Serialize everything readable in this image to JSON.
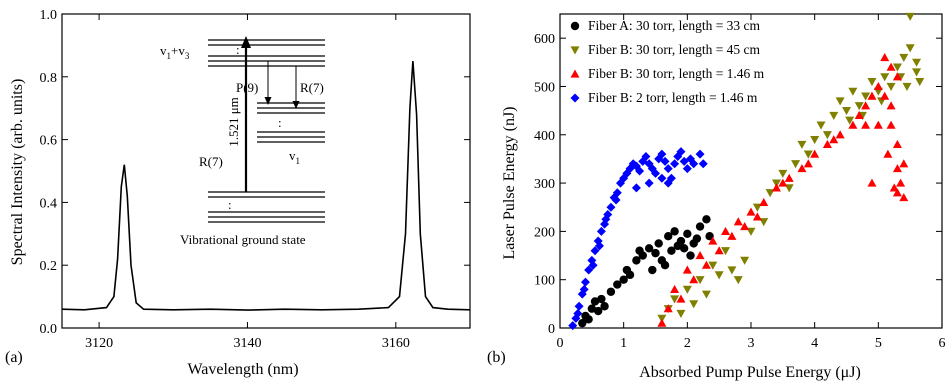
{
  "panels": {
    "a_label": "(a)",
    "b_label": "(b)"
  },
  "chart_data": [
    {
      "type": "line",
      "xlabel": "Wavelength (nm)",
      "ylabel": "Spectral Intensity (arb. units)",
      "xlim": [
        3115,
        3170
      ],
      "ylim": [
        0.0,
        1.0
      ],
      "xticks": [
        3120,
        3140,
        3160
      ],
      "yticks": [
        0.0,
        0.2,
        0.4,
        0.6,
        0.8,
        1.0
      ],
      "grid": false,
      "series": [
        {
          "x": [
            3115,
            3118,
            3121,
            3122,
            3122.5,
            3123,
            3123.4,
            3123.8,
            3124.3,
            3125,
            3126,
            3130,
            3135,
            3140,
            3145,
            3150,
            3155,
            3159,
            3160.5,
            3161.3,
            3161.9,
            3162.3,
            3162.8,
            3163.3,
            3164,
            3165,
            3167,
            3170
          ],
          "y": [
            0.06,
            0.058,
            0.065,
            0.1,
            0.22,
            0.45,
            0.52,
            0.42,
            0.2,
            0.08,
            0.06,
            0.058,
            0.06,
            0.057,
            0.06,
            0.058,
            0.06,
            0.065,
            0.1,
            0.3,
            0.7,
            0.85,
            0.68,
            0.3,
            0.1,
            0.065,
            0.06,
            0.058
          ]
        }
      ],
      "inset": {
        "labels": {
          "upper_state": "v",
          "upper_sub1": "1",
          "plus": "+v",
          "upper_sub3": "3",
          "wavelength": "1.521 μm",
          "pump_branch": "R(7)",
          "emission_p": "P(9)",
          "emission_r": "R(7)",
          "lower_state": "v",
          "lower_sub": "1",
          "ground": "Vibrational ground state"
        }
      }
    },
    {
      "type": "scatter",
      "xlabel": "Absorbed Pump Pulse Energy (μJ)",
      "ylabel": "Laser Pulse Energy (nJ)",
      "xlim": [
        0,
        6
      ],
      "ylim": [
        0,
        650
      ],
      "xticks": [
        0,
        1,
        2,
        3,
        4,
        5,
        6
      ],
      "yticks": [
        0,
        100,
        200,
        300,
        400,
        500,
        600
      ],
      "grid": false,
      "legend_position": "top-left",
      "series": [
        {
          "name": "Fiber A: 30 torr, length = 33 cm",
          "color": "#000000",
          "marker": "circle",
          "points": [
            [
              0.35,
              10
            ],
            [
              0.4,
              25
            ],
            [
              0.45,
              18
            ],
            [
              0.5,
              40
            ],
            [
              0.55,
              55
            ],
            [
              0.6,
              35
            ],
            [
              0.65,
              60
            ],
            [
              0.7,
              45
            ],
            [
              0.8,
              75
            ],
            [
              0.9,
              90
            ],
            [
              1.0,
              100
            ],
            [
              1.05,
              120
            ],
            [
              1.1,
              110
            ],
            [
              1.2,
              140
            ],
            [
              1.3,
              150
            ],
            [
              1.4,
              165
            ],
            [
              1.5,
              155
            ],
            [
              1.55,
              175
            ],
            [
              1.6,
              140
            ],
            [
              1.7,
              190
            ],
            [
              1.75,
              160
            ],
            [
              1.8,
              200
            ],
            [
              1.85,
              170
            ],
            [
              1.9,
              180
            ],
            [
              2.0,
              195
            ],
            [
              2.05,
              150
            ],
            [
              2.1,
              175
            ],
            [
              2.2,
              210
            ],
            [
              2.3,
              225
            ],
            [
              2.35,
              190
            ],
            [
              1.45,
              120
            ],
            [
              1.65,
              130
            ],
            [
              1.95,
              165
            ],
            [
              2.15,
              185
            ],
            [
              1.25,
              160
            ]
          ]
        },
        {
          "name": "Fiber B: 30 torr, length = 45 cm",
          "color": "#808000",
          "marker": "triangle-down",
          "points": [
            [
              1.6,
              20
            ],
            [
              1.7,
              40
            ],
            [
              1.8,
              60
            ],
            [
              1.9,
              30
            ],
            [
              2.0,
              80
            ],
            [
              2.1,
              50
            ],
            [
              2.2,
              100
            ],
            [
              2.3,
              70
            ],
            [
              2.4,
              130
            ],
            [
              2.5,
              110
            ],
            [
              2.6,
              160
            ],
            [
              2.7,
              120
            ],
            [
              2.8,
              100
            ],
            [
              2.9,
              140
            ],
            [
              3.0,
              200
            ],
            [
              3.1,
              250
            ],
            [
              3.2,
              220
            ],
            [
              3.3,
              280
            ],
            [
              3.4,
              300
            ],
            [
              3.5,
              320
            ],
            [
              3.6,
              290
            ],
            [
              3.7,
              340
            ],
            [
              3.8,
              380
            ],
            [
              3.9,
              360
            ],
            [
              4.0,
              390
            ],
            [
              4.1,
              420
            ],
            [
              4.2,
              400
            ],
            [
              4.3,
              440
            ],
            [
              4.4,
              470
            ],
            [
              4.5,
              450
            ],
            [
              4.6,
              490
            ],
            [
              4.7,
              460
            ],
            [
              4.8,
              480
            ],
            [
              4.9,
              510
            ],
            [
              5.0,
              490
            ],
            [
              5.1,
              520
            ],
            [
              5.2,
              500
            ],
            [
              5.3,
              540
            ],
            [
              5.4,
              560
            ],
            [
              5.5,
              580
            ],
            [
              5.6,
              550
            ],
            [
              5.5,
              645
            ],
            [
              4.55,
              430
            ],
            [
              4.75,
              440
            ],
            [
              5.05,
              470
            ],
            [
              5.35,
              520
            ],
            [
              5.45,
              500
            ],
            [
              5.6,
              530
            ],
            [
              5.65,
              510
            ]
          ]
        },
        {
          "name": "Fiber B: 30 torr, length = 1.46 m",
          "color": "#ff0000",
          "marker": "triangle-up",
          "points": [
            [
              1.6,
              10
            ],
            [
              1.7,
              40
            ],
            [
              1.8,
              80
            ],
            [
              1.9,
              60
            ],
            [
              2.0,
              120
            ],
            [
              2.1,
              100
            ],
            [
              2.2,
              150
            ],
            [
              2.4,
              180
            ],
            [
              2.6,
              200
            ],
            [
              2.8,
              220
            ],
            [
              3.0,
              240
            ],
            [
              3.2,
              260
            ],
            [
              3.4,
              290
            ],
            [
              3.6,
              310
            ],
            [
              3.8,
              330
            ],
            [
              4.0,
              360
            ],
            [
              4.2,
              380
            ],
            [
              4.4,
              400
            ],
            [
              4.6,
              420
            ],
            [
              4.7,
              440
            ],
            [
              4.8,
              460
            ],
            [
              4.9,
              480
            ],
            [
              5.0,
              500
            ],
            [
              5.1,
              560
            ],
            [
              5.2,
              540
            ],
            [
              5.3,
              520
            ],
            [
              5.1,
              480
            ],
            [
              5.2,
              420
            ],
            [
              5.3,
              380
            ],
            [
              5.4,
              340
            ],
            [
              5.35,
              300
            ],
            [
              5.4,
              270
            ],
            [
              5.25,
              290
            ],
            [
              5.3,
              330
            ],
            [
              5.2,
              460
            ],
            [
              5.0,
              420
            ],
            [
              5.15,
              360
            ],
            [
              4.9,
              300
            ],
            [
              5.3,
              280
            ],
            [
              4.8,
              420
            ],
            [
              2.3,
              130
            ],
            [
              2.5,
              160
            ],
            [
              2.7,
              190
            ],
            [
              2.9,
              210
            ],
            [
              3.1,
              230
            ],
            [
              3.5,
              300
            ],
            [
              3.9,
              340
            ],
            [
              4.3,
              390
            ]
          ]
        },
        {
          "name": "Fiber B: 2 torr, length = 1.46 m",
          "color": "#0000ff",
          "marker": "diamond",
          "points": [
            [
              0.2,
              5
            ],
            [
              0.25,
              20
            ],
            [
              0.3,
              45
            ],
            [
              0.35,
              70
            ],
            [
              0.4,
              95
            ],
            [
              0.45,
              120
            ],
            [
              0.5,
              140
            ],
            [
              0.55,
              160
            ],
            [
              0.6,
              180
            ],
            [
              0.65,
              200
            ],
            [
              0.7,
              215
            ],
            [
              0.75,
              235
            ],
            [
              0.8,
              250
            ],
            [
              0.85,
              270
            ],
            [
              0.9,
              280
            ],
            [
              0.95,
              300
            ],
            [
              1.0,
              310
            ],
            [
              1.05,
              320
            ],
            [
              1.1,
              330
            ],
            [
              1.15,
              340
            ],
            [
              1.2,
              335
            ],
            [
              1.25,
              325
            ],
            [
              1.3,
              345
            ],
            [
              1.35,
              355
            ],
            [
              1.4,
              340
            ],
            [
              1.45,
              330
            ],
            [
              1.5,
              320
            ],
            [
              1.55,
              350
            ],
            [
              1.6,
              360
            ],
            [
              1.65,
              345
            ],
            [
              1.7,
              330
            ],
            [
              1.75,
              310
            ],
            [
              1.8,
              340
            ],
            [
              1.85,
              355
            ],
            [
              1.9,
              365
            ],
            [
              1.95,
              345
            ],
            [
              2.0,
              330
            ],
            [
              2.05,
              350
            ],
            [
              2.1,
              340
            ],
            [
              2.2,
              360
            ],
            [
              2.25,
              340
            ],
            [
              1.6,
              310
            ],
            [
              1.7,
              300
            ],
            [
              1.4,
              300
            ],
            [
              1.2,
              290
            ],
            [
              0.28,
              30
            ],
            [
              0.38,
              80
            ],
            [
              0.52,
              130
            ],
            [
              0.62,
              170
            ],
            [
              0.72,
              225
            ],
            [
              0.88,
              265
            ]
          ]
        }
      ]
    }
  ]
}
